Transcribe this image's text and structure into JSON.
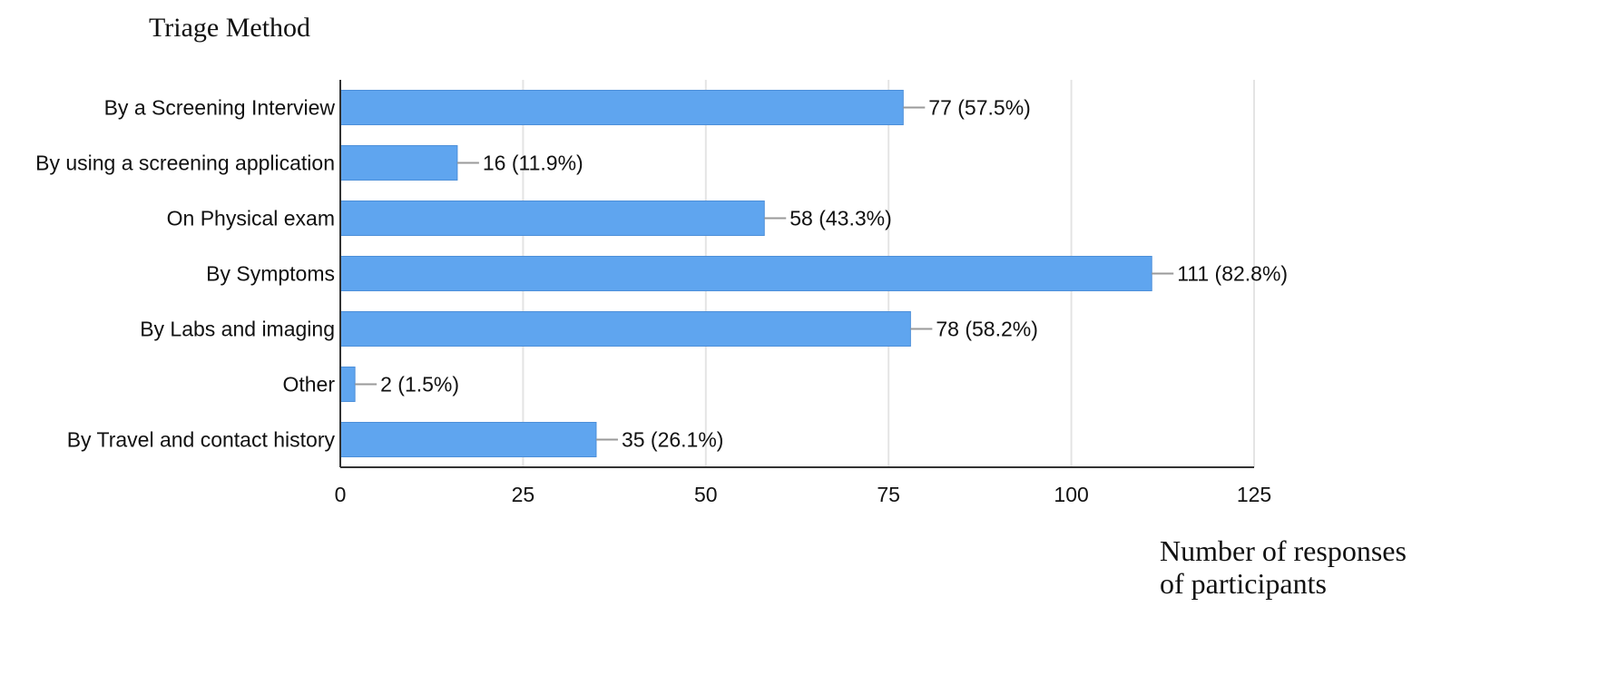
{
  "chart_data": {
    "type": "bar",
    "orientation": "horizontal",
    "title": "Triage Method",
    "xlabel_lines": [
      "Number of responses",
      "of participants"
    ],
    "ylabel": "",
    "categories": [
      "By a Screening Interview",
      "By using a screening application",
      "On Physical exam",
      "By Symptoms",
      "By Labs and imaging",
      "Other",
      "By Travel and contact history"
    ],
    "values": [
      77,
      16,
      58,
      111,
      78,
      2,
      35
    ],
    "data_labels": [
      "77 (57.5%)",
      "16 (11.9%)",
      "58 (43.3%)",
      "111 (82.8%)",
      "78 (58.2%)",
      "2 (1.5%)",
      "35 (26.1%)"
    ],
    "xlim": [
      0,
      125
    ],
    "xticks": [
      0,
      25,
      50,
      75,
      100,
      125
    ],
    "xtick_labels": [
      "0",
      "25",
      "50",
      "75",
      "100",
      "125"
    ],
    "grid": true,
    "legend": "none",
    "bar_color": "#5fa5ef",
    "bar_border_color": "#4d8fd9",
    "grid_color": "#e4e4e4",
    "axis_color": "#333333",
    "leader_color": "#9a9a9a",
    "text_color": "#111111"
  }
}
